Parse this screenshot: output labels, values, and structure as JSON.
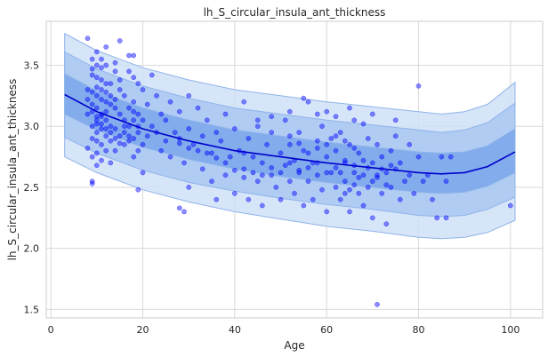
{
  "chart_data": {
    "type": "scatter",
    "title": "lh_S_circular_insula_ant_thickness",
    "xlabel": "Age",
    "ylabel": "lh_S_circular_insula_ant_thickness",
    "xlim": [
      -1,
      107
    ],
    "ylim": [
      1.43,
      3.86
    ],
    "xticks": [
      0,
      20,
      40,
      60,
      80,
      100
    ],
    "yticks": [
      1.5,
      2.0,
      2.5,
      3.0,
      3.5
    ],
    "ytick_labels": [
      "1.5",
      "2.0",
      "2.5",
      "3.0",
      "3.5"
    ],
    "grid": true,
    "legend": "none",
    "point_color": "#0000ff",
    "line_color": "#0000cc",
    "band_colors": {
      "outer": "#cfe0f7",
      "middle": "#a9c8f2",
      "inner": "#7aa6ea",
      "edge": "#8fb3ea"
    },
    "centile_x": [
      3,
      10,
      20,
      30,
      40,
      50,
      60,
      70,
      80,
      85,
      90,
      95,
      101
    ],
    "median": [
      3.26,
      3.12,
      2.98,
      2.88,
      2.8,
      2.75,
      2.7,
      2.66,
      2.62,
      2.61,
      2.62,
      2.67,
      2.79
    ],
    "bands": [
      {
        "name": "outer",
        "lower": [
          2.75,
          2.62,
          2.48,
          2.38,
          2.3,
          2.24,
          2.18,
          2.14,
          2.09,
          2.08,
          2.09,
          2.13,
          2.23
        ],
        "upper": [
          3.76,
          3.62,
          3.48,
          3.38,
          3.3,
          3.25,
          3.2,
          3.16,
          3.12,
          3.1,
          3.12,
          3.18,
          3.36
        ]
      },
      {
        "name": "middle",
        "lower": [
          2.91,
          2.78,
          2.64,
          2.54,
          2.47,
          2.41,
          2.36,
          2.32,
          2.27,
          2.26,
          2.27,
          2.32,
          2.42
        ],
        "upper": [
          3.61,
          3.47,
          3.33,
          3.23,
          3.15,
          3.1,
          3.05,
          3.01,
          2.97,
          2.95,
          2.97,
          3.03,
          3.19
        ]
      },
      {
        "name": "inner",
        "lower": [
          3.1,
          2.97,
          2.83,
          2.73,
          2.65,
          2.59,
          2.54,
          2.5,
          2.46,
          2.45,
          2.46,
          2.51,
          2.62
        ],
        "upper": [
          3.43,
          3.29,
          3.15,
          3.05,
          2.97,
          2.92,
          2.87,
          2.83,
          2.79,
          2.78,
          2.79,
          2.84,
          2.98
        ]
      }
    ],
    "points": [
      [
        8,
        3.72
      ],
      [
        9,
        3.55
      ],
      [
        10,
        3.61
      ],
      [
        12,
        3.65
      ],
      [
        15,
        3.7
      ],
      [
        14,
        3.52
      ],
      [
        17,
        3.58
      ],
      [
        18,
        3.58
      ],
      [
        11,
        3.48
      ],
      [
        9,
        3.42
      ],
      [
        10,
        3.4
      ],
      [
        11,
        3.38
      ],
      [
        12,
        3.35
      ],
      [
        8,
        3.3
      ],
      [
        9,
        3.28
      ],
      [
        10,
        3.25
      ],
      [
        11,
        3.22
      ],
      [
        12,
        3.2
      ],
      [
        13,
        3.18
      ],
      [
        10,
        3.15
      ],
      [
        9,
        3.12
      ],
      [
        8,
        3.1
      ],
      [
        11,
        3.08
      ],
      [
        12,
        3.05
      ],
      [
        10,
        3.02
      ],
      [
        9,
        3.0
      ],
      [
        11,
        2.98
      ],
      [
        10,
        2.95
      ],
      [
        12,
        2.92
      ],
      [
        9,
        2.9
      ],
      [
        10,
        2.88
      ],
      [
        11,
        2.85
      ],
      [
        8,
        2.82
      ],
      [
        12,
        2.8
      ],
      [
        10,
        2.78
      ],
      [
        9,
        2.75
      ],
      [
        11,
        2.72
      ],
      [
        13,
        2.7
      ],
      [
        10,
        2.68
      ],
      [
        9,
        2.55
      ],
      [
        9,
        2.53
      ],
      [
        14,
        3.45
      ],
      [
        15,
        3.3
      ],
      [
        16,
        3.25
      ],
      [
        15,
        3.1
      ],
      [
        16,
        3.05
      ],
      [
        14,
        2.98
      ],
      [
        15,
        2.92
      ],
      [
        16,
        2.85
      ],
      [
        14,
        2.8
      ],
      [
        13,
        3.35
      ],
      [
        13,
        3.0
      ],
      [
        13,
        2.88
      ],
      [
        14,
        3.15
      ],
      [
        15,
        3.38
      ],
      [
        12,
        3.5
      ],
      [
        11,
        3.55
      ],
      [
        10,
        3.5
      ],
      [
        9,
        3.47
      ],
      [
        8,
        3.22
      ],
      [
        17,
        3.45
      ],
      [
        18,
        3.4
      ],
      [
        19,
        3.35
      ],
      [
        18,
        3.2
      ],
      [
        17,
        3.15
      ],
      [
        19,
        3.1
      ],
      [
        18,
        3.05
      ],
      [
        17,
        3.0
      ],
      [
        19,
        2.95
      ],
      [
        18,
        2.9
      ],
      [
        17,
        2.88
      ],
      [
        19,
        2.8
      ],
      [
        18,
        2.75
      ],
      [
        20,
        3.3
      ],
      [
        20,
        3.05
      ],
      [
        20,
        2.85
      ],
      [
        21,
        3.18
      ],
      [
        22,
        3.0
      ],
      [
        21,
        2.92
      ],
      [
        19,
        2.48
      ],
      [
        20,
        2.62
      ],
      [
        22,
        3.42
      ],
      [
        23,
        3.25
      ],
      [
        24,
        3.1
      ],
      [
        23,
        2.95
      ],
      [
        24,
        2.8
      ],
      [
        25,
        3.05
      ],
      [
        25,
        2.88
      ],
      [
        26,
        3.2
      ],
      [
        27,
        2.95
      ],
      [
        26,
        2.75
      ],
      [
        28,
        3.12
      ],
      [
        28,
        2.9
      ],
      [
        29,
        2.7
      ],
      [
        30,
        3.25
      ],
      [
        30,
        2.98
      ],
      [
        30,
        2.5
      ],
      [
        29,
        2.3
      ],
      [
        28,
        2.33
      ],
      [
        31,
        2.85
      ],
      [
        32,
        3.15
      ],
      [
        33,
        2.92
      ],
      [
        33,
        2.65
      ],
      [
        34,
        3.05
      ],
      [
        35,
        2.78
      ],
      [
        35,
        2.55
      ],
      [
        36,
        2.95
      ],
      [
        36,
        2.4
      ],
      [
        37,
        2.88
      ],
      [
        38,
        3.1
      ],
      [
        38,
        2.6
      ],
      [
        39,
        2.75
      ],
      [
        40,
        2.98
      ],
      [
        40,
        2.45
      ],
      [
        41,
        2.8
      ],
      [
        42,
        3.2
      ],
      [
        42,
        2.65
      ],
      [
        43,
        2.9
      ],
      [
        43,
        2.4
      ],
      [
        44,
        2.75
      ],
      [
        45,
        2.55
      ],
      [
        45,
        3.0
      ],
      [
        46,
        2.7
      ],
      [
        46,
        2.35
      ],
      [
        47,
        2.85
      ],
      [
        48,
        2.6
      ],
      [
        48,
        2.95
      ],
      [
        49,
        2.5
      ],
      [
        50,
        2.78
      ],
      [
        50,
        2.4
      ],
      [
        51,
        2.68
      ],
      [
        51,
        3.05
      ],
      [
        52,
        2.55
      ],
      [
        52,
        2.85
      ],
      [
        53,
        2.45
      ],
      [
        53,
        2.72
      ],
      [
        54,
        2.95
      ],
      [
        54,
        2.62
      ],
      [
        55,
        2.35
      ],
      [
        55,
        2.8
      ],
      [
        56,
        2.55
      ],
      [
        56,
        3.2
      ],
      [
        57,
        2.7
      ],
      [
        57,
        2.4
      ],
      [
        58,
        2.88
      ],
      [
        58,
        2.6
      ],
      [
        59,
        2.48
      ],
      [
        59,
        3.0
      ],
      [
        60,
        2.75
      ],
      [
        60,
        2.3
      ],
      [
        61,
        2.62
      ],
      [
        61,
        2.9
      ],
      [
        62,
        2.5
      ],
      [
        62,
        2.8
      ],
      [
        63,
        2.4
      ],
      [
        63,
        2.95
      ],
      [
        64,
        2.7
      ],
      [
        64,
        2.55
      ],
      [
        65,
        2.85
      ],
      [
        65,
        2.3
      ],
      [
        66,
        2.62
      ],
      [
        66,
        3.05
      ],
      [
        67,
        2.45
      ],
      [
        67,
        2.78
      ],
      [
        68,
        2.6
      ],
      [
        68,
        2.35
      ],
      [
        69,
        2.9
      ],
      [
        69,
        2.5
      ],
      [
        70,
        2.7
      ],
      [
        70,
        2.25
      ],
      [
        71,
        2.58
      ],
      [
        71,
        2.85
      ],
      [
        72,
        2.45
      ],
      [
        72,
        2.75
      ],
      [
        73,
        2.62
      ],
      [
        73,
        2.2
      ],
      [
        74,
        2.8
      ],
      [
        74,
        2.5
      ],
      [
        75,
        2.65
      ],
      [
        75,
        2.92
      ],
      [
        76,
        2.4
      ],
      [
        76,
        2.7
      ],
      [
        77,
        2.55
      ],
      [
        78,
        2.85
      ],
      [
        78,
        2.6
      ],
      [
        79,
        2.45
      ],
      [
        80,
        3.33
      ],
      [
        80,
        2.75
      ],
      [
        81,
        2.55
      ],
      [
        82,
        2.6
      ],
      [
        83,
        2.4
      ],
      [
        84,
        2.25
      ],
      [
        85,
        2.75
      ],
      [
        86,
        2.25
      ],
      [
        86,
        2.55
      ],
      [
        87,
        2.75
      ],
      [
        100,
        2.35
      ],
      [
        71,
        1.54
      ],
      [
        55,
        3.23
      ],
      [
        45,
        3.05
      ],
      [
        60,
        3.12
      ],
      [
        65,
        3.15
      ],
      [
        70,
        3.1
      ],
      [
        75,
        3.05
      ],
      [
        68,
        3.02
      ],
      [
        62,
        3.08
      ],
      [
        58,
        3.1
      ],
      [
        52,
        3.12
      ],
      [
        48,
        3.08
      ],
      [
        42,
        2.78
      ],
      [
        66,
        2.68
      ],
      [
        64,
        2.72
      ],
      [
        62,
        2.66
      ],
      [
        60,
        2.62
      ],
      [
        58,
        2.7
      ],
      [
        56,
        2.66
      ],
      [
        54,
        2.64
      ],
      [
        52,
        2.7
      ],
      [
        50,
        2.62
      ],
      [
        48,
        2.66
      ],
      [
        46,
        2.6
      ],
      [
        44,
        2.62
      ],
      [
        42,
        2.58
      ],
      [
        40,
        2.64
      ],
      [
        38,
        2.7
      ],
      [
        36,
        2.74
      ],
      [
        34,
        2.78
      ],
      [
        32,
        2.8
      ],
      [
        30,
        2.82
      ],
      [
        28,
        2.86
      ],
      [
        67,
        2.58
      ],
      [
        66,
        2.52
      ],
      [
        65,
        2.48
      ],
      [
        64,
        2.45
      ],
      [
        63,
        2.62
      ],
      [
        68,
        2.72
      ],
      [
        69,
        2.66
      ],
      [
        70,
        2.55
      ],
      [
        71,
        2.6
      ],
      [
        72,
        2.65
      ],
      [
        73,
        2.52
      ],
      [
        74,
        2.68
      ],
      [
        66,
        2.82
      ],
      [
        64,
        2.88
      ],
      [
        62,
        2.92
      ],
      [
        60,
        2.85
      ],
      [
        58,
        2.82
      ],
      [
        56,
        2.78
      ],
      [
        54,
        2.86
      ],
      [
        52,
        2.92
      ],
      [
        16,
        3.0
      ],
      [
        16,
        2.95
      ],
      [
        17,
        2.92
      ],
      [
        18,
        3.12
      ],
      [
        19,
        3.0
      ],
      [
        15,
        2.86
      ],
      [
        14,
        2.9
      ],
      [
        13,
        2.95
      ],
      [
        12,
        2.98
      ],
      [
        11,
        3.02
      ],
      [
        10,
        3.08
      ],
      [
        9,
        3.18
      ],
      [
        10,
        3.32
      ],
      [
        11,
        3.3
      ],
      [
        12,
        3.28
      ],
      [
        13,
        3.25
      ],
      [
        14,
        3.22
      ],
      [
        12,
        3.12
      ],
      [
        11,
        3.1
      ],
      [
        10,
        3.05
      ]
    ]
  }
}
